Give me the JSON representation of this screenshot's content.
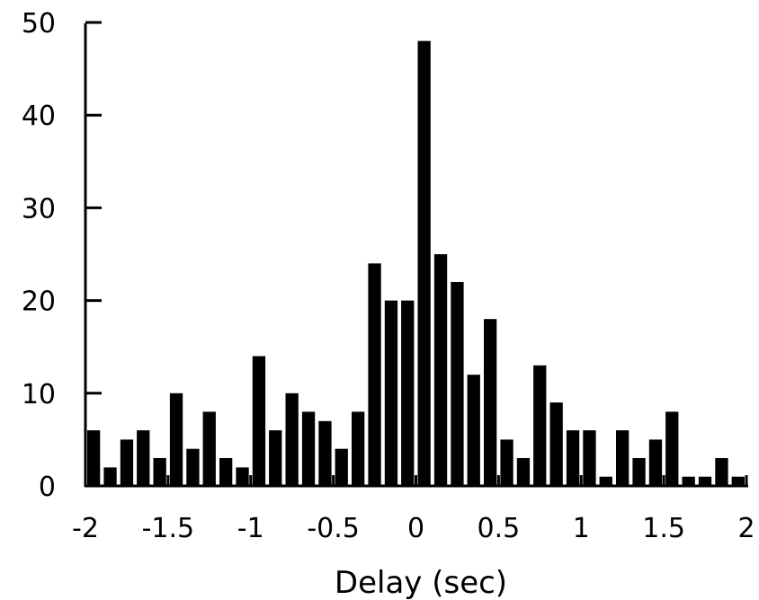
{
  "chart_data": {
    "type": "bar",
    "title": "",
    "xlabel": "Delay (sec)",
    "ylabel": "",
    "xlim": [
      -2,
      2
    ],
    "ylim": [
      0,
      50
    ],
    "grid": false,
    "bar_color": "#000000",
    "bin_width": 0.1,
    "x": [
      -1.95,
      -1.85,
      -1.75,
      -1.65,
      -1.55,
      -1.45,
      -1.35,
      -1.25,
      -1.15,
      -1.05,
      -0.95,
      -0.85,
      -0.75,
      -0.65,
      -0.55,
      -0.45,
      -0.35,
      -0.25,
      -0.15,
      -0.05,
      0.05,
      0.15,
      0.25,
      0.35,
      0.45,
      0.55,
      0.65,
      0.75,
      0.85,
      0.95,
      1.05,
      1.15,
      1.25,
      1.35,
      1.45,
      1.55,
      1.65,
      1.75,
      1.85,
      1.95
    ],
    "values": [
      6,
      2,
      5,
      6,
      3,
      10,
      4,
      8,
      3,
      2,
      14,
      6,
      10,
      8,
      7,
      4,
      8,
      24,
      20,
      20,
      48,
      25,
      22,
      12,
      18,
      5,
      3,
      13,
      9,
      6,
      6,
      1,
      6,
      3,
      5,
      8,
      1,
      1,
      3,
      1
    ],
    "x_ticks": [
      -2,
      -1.5,
      -1,
      -0.5,
      0,
      0.5,
      1,
      1.5,
      2
    ],
    "x_tick_labels": [
      "-2",
      "-1.5",
      "-1",
      "-0.5",
      "0",
      "0.5",
      "1",
      "1.5",
      "2"
    ],
    "y_ticks": [
      0,
      10,
      20,
      30,
      40,
      50
    ],
    "y_tick_labels": [
      "0",
      "10",
      "20",
      "30",
      "40",
      "50"
    ]
  }
}
